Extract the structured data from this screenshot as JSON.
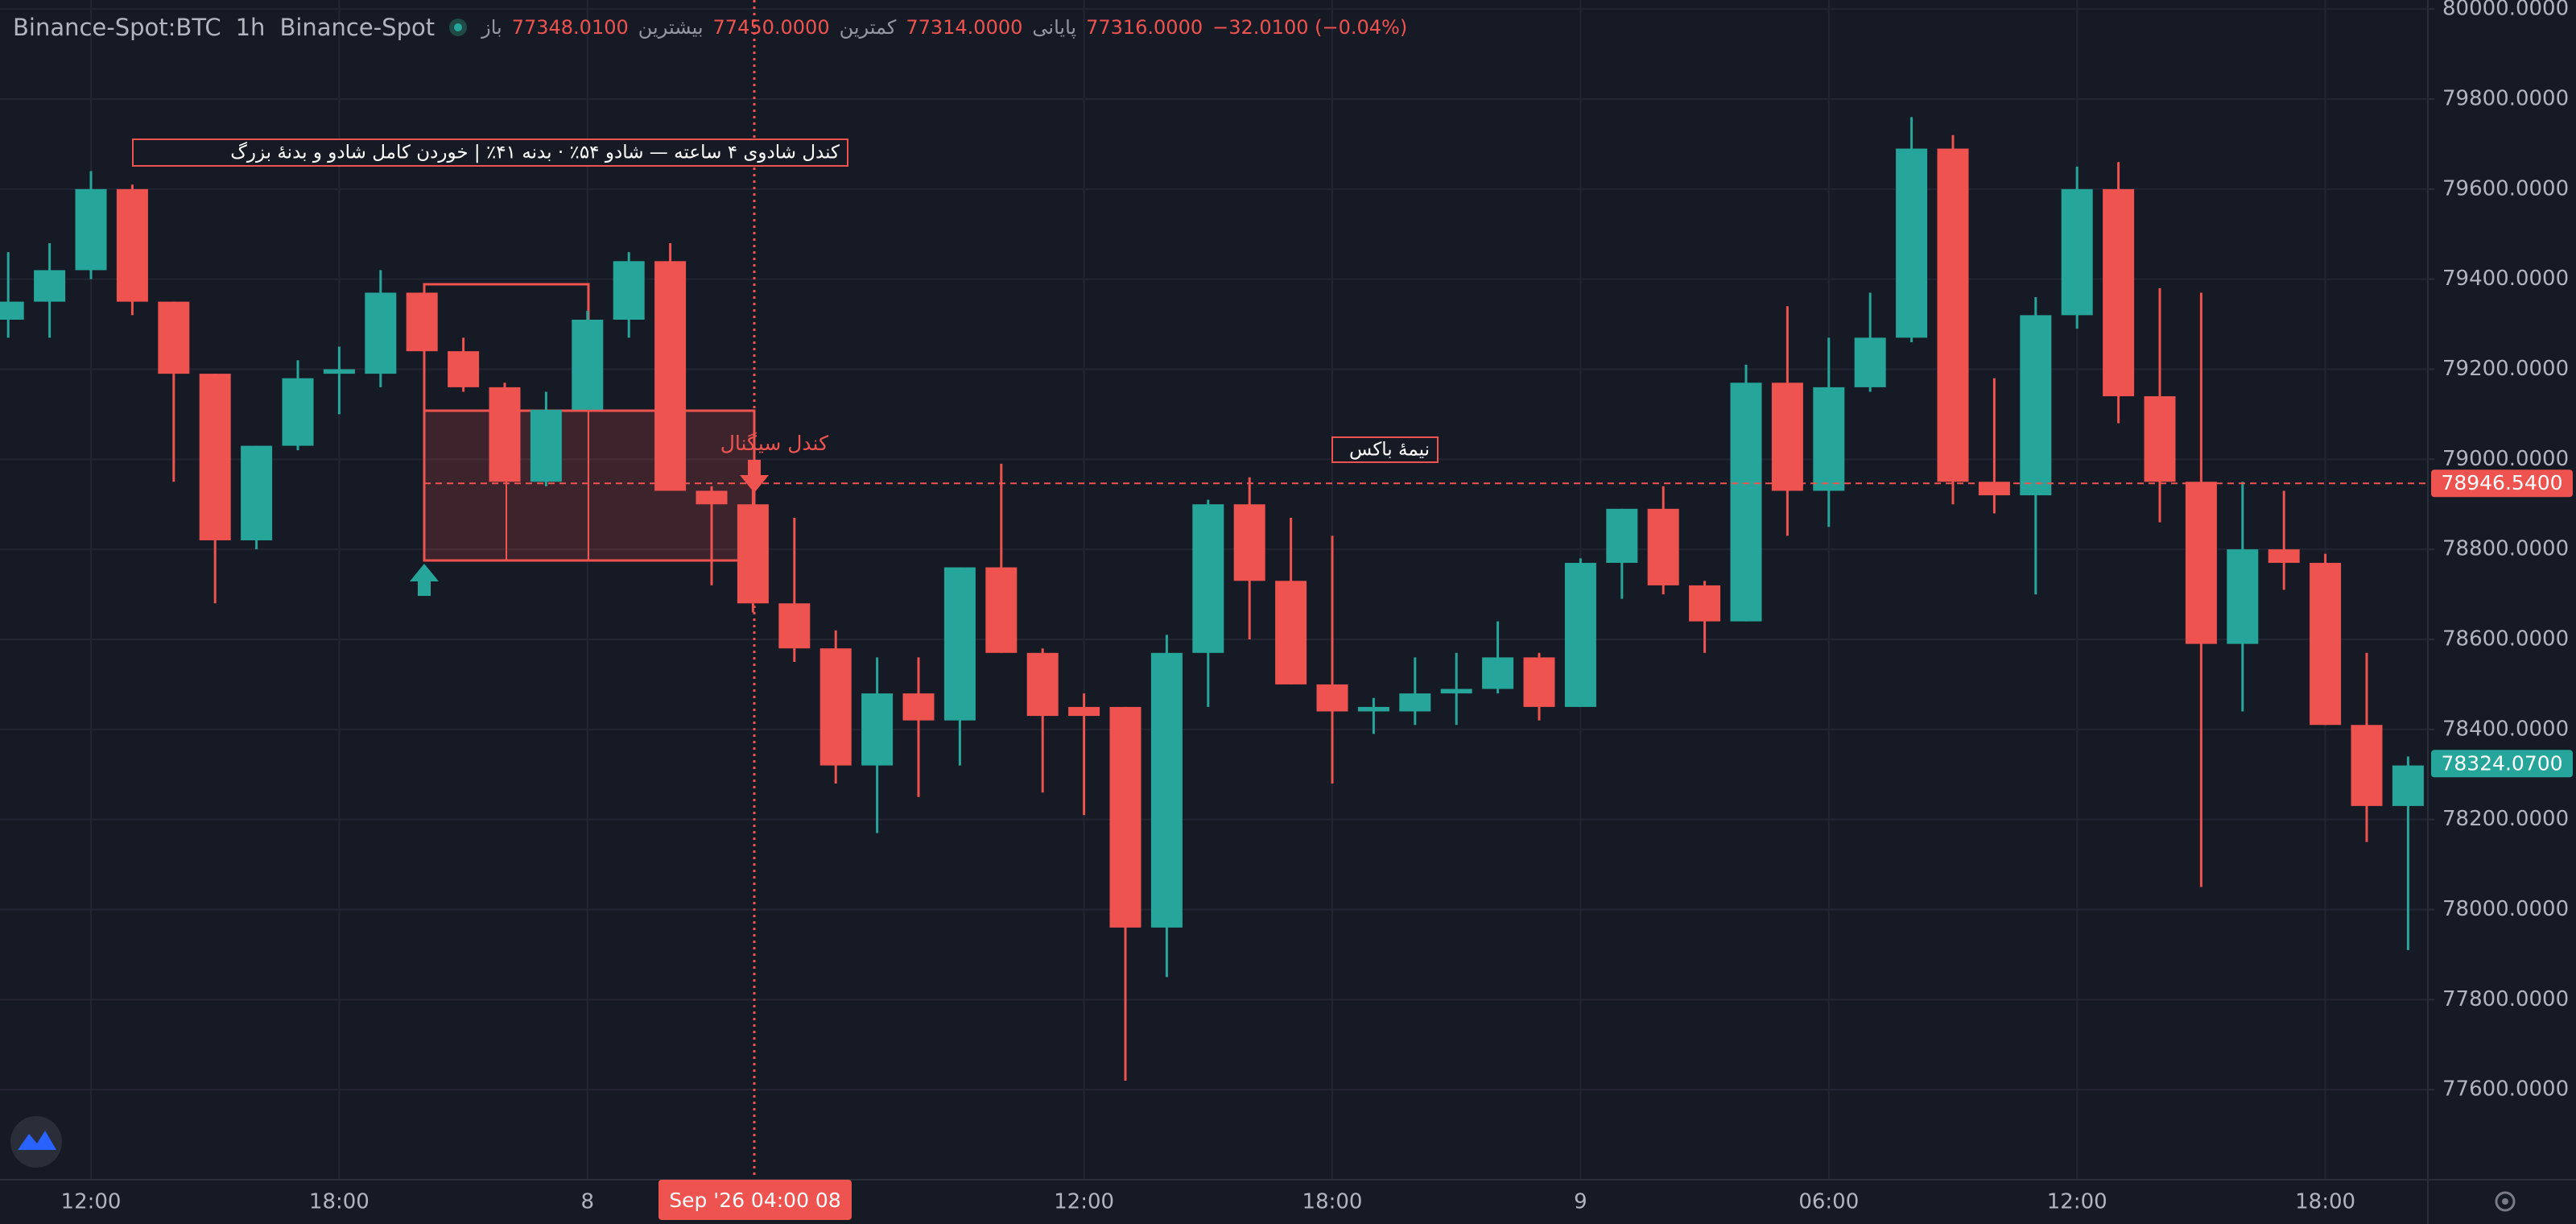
{
  "header": {
    "symbol": "Binance-Spot:BTC",
    "interval": "1h",
    "exchange": "Binance-Spot",
    "ohlc": [
      {
        "label": "باز",
        "value": "77348.0100"
      },
      {
        "label": "بیشترین",
        "value": "77450.0000"
      },
      {
        "label": "کمترین",
        "value": "77314.0000"
      },
      {
        "label": "پایانی",
        "value": "77316.0000"
      }
    ],
    "change": "−32.0100 (−0.04%)"
  },
  "chart_data": {
    "type": "candlestick",
    "categories": [
      null,
      null,
      "12:00",
      null,
      null,
      null,
      null,
      null,
      "18:00",
      null,
      null,
      null,
      null,
      null,
      "8",
      null,
      null,
      null,
      null,
      null,
      null,
      null,
      null,
      null,
      null,
      null,
      "12:00",
      null,
      null,
      null,
      null,
      null,
      "18:00",
      null,
      null,
      null,
      null,
      null,
      "9",
      null,
      null,
      null,
      null,
      null,
      "06:00",
      null,
      null,
      null,
      null,
      null,
      "12:00",
      null,
      null,
      null,
      null,
      null,
      "18:00",
      null,
      null
    ],
    "open": [
      79310,
      79350,
      79420,
      79600,
      79350,
      79190,
      78820,
      79030,
      79190,
      79190,
      79370,
      79240,
      79160,
      78950,
      79110,
      79310,
      79440,
      78930,
      78900,
      78680,
      78580,
      78320,
      78480,
      78420,
      78760,
      78570,
      78450,
      78450,
      77960,
      78570,
      78900,
      78730,
      78500,
      78440,
      78440,
      78480,
      78490,
      78560,
      78450,
      78770,
      78890,
      78720,
      78640,
      79170,
      78930,
      79160,
      79270,
      79690,
      78950,
      78920,
      79320,
      79600,
      79140,
      78950,
      78590,
      78800,
      78770,
      78410,
      78230
    ],
    "high": [
      79460,
      79480,
      79640,
      79610,
      79350,
      79190,
      79030,
      79220,
      79250,
      79420,
      79370,
      79270,
      79170,
      79150,
      79330,
      79460,
      79480,
      78940,
      78960,
      78870,
      78620,
      78560,
      78560,
      78760,
      78990,
      78580,
      78480,
      78450,
      78610,
      78910,
      78960,
      78870,
      78830,
      78470,
      78560,
      78570,
      78640,
      78570,
      78780,
      78890,
      78940,
      78730,
      79210,
      79340,
      79270,
      79370,
      79760,
      79720,
      79180,
      79360,
      79650,
      79660,
      79380,
      79370,
      78950,
      78930,
      78790,
      78570,
      78340
    ],
    "low": [
      79270,
      79270,
      79400,
      79320,
      78950,
      78680,
      78800,
      79020,
      79100,
      79160,
      79240,
      79150,
      78950,
      78940,
      79110,
      79270,
      78930,
      78720,
      78660,
      78550,
      78280,
      78170,
      78250,
      78320,
      78570,
      78260,
      78210,
      77620,
      77850,
      78450,
      78600,
      78500,
      78280,
      78390,
      78410,
      78410,
      78480,
      78420,
      78450,
      78690,
      78700,
      78570,
      78640,
      78830,
      78850,
      79150,
      79260,
      78900,
      78880,
      78700,
      79290,
      79080,
      78860,
      78050,
      78440,
      78710,
      78410,
      78150,
      77910
    ],
    "close": [
      79350,
      79420,
      79600,
      79350,
      79190,
      78820,
      79030,
      79180,
      79200,
      79370,
      79240,
      79160,
      78950,
      79110,
      79310,
      79440,
      78930,
      78900,
      78680,
      78580,
      78320,
      78480,
      78420,
      78760,
      78570,
      78430,
      78430,
      77960,
      78570,
      78900,
      78730,
      78500,
      78440,
      78450,
      78480,
      78490,
      78560,
      78450,
      78770,
      78890,
      78720,
      78640,
      79170,
      78930,
      79160,
      79270,
      79690,
      78950,
      78920,
      79320,
      79600,
      79140,
      78950,
      78590,
      78800,
      78770,
      78410,
      78230,
      78320
    ],
    "up_color": "#26a69a",
    "down_color": "#ef5350",
    "ylim": [
      77400,
      80020
    ],
    "yticks": [
      {
        "value": 77600,
        "label": "77600.0000"
      },
      {
        "value": 77800,
        "label": "77800.0000"
      },
      {
        "value": 78000,
        "label": "78000.0000"
      },
      {
        "value": 78200,
        "label": "78200.0000"
      },
      {
        "value": 78400,
        "label": "78400.0000"
      },
      {
        "value": 78600,
        "label": "78600.0000"
      },
      {
        "value": 78800,
        "label": "78800.0000"
      },
      {
        "value": 79000,
        "label": "79000.0000"
      },
      {
        "value": 79200,
        "label": "79200.0000"
      },
      {
        "value": 79400,
        "label": "79400.0000"
      },
      {
        "value": 79600,
        "label": "79600.0000"
      },
      {
        "value": 79800,
        "label": "79800.0000"
      },
      {
        "value": 80000,
        "label": "80000.0000"
      }
    ],
    "grid": true,
    "level": {
      "value": 78946.54,
      "label": "78946.5400"
    },
    "last_price": {
      "value": 78324.07,
      "label": "78324.0700"
    },
    "crosshair_label": "Sep '26   04:00 08",
    "annotations": {
      "title_box": "کندل شادوی ۴ ساعته — شادو ۵۴٪ · بدنه ۴۱٪ | خوردن کامل شادو و بدنهٔ بزرگ",
      "signal": "کندل سیگنال",
      "half_box": "نیمهٔ باکس"
    }
  }
}
